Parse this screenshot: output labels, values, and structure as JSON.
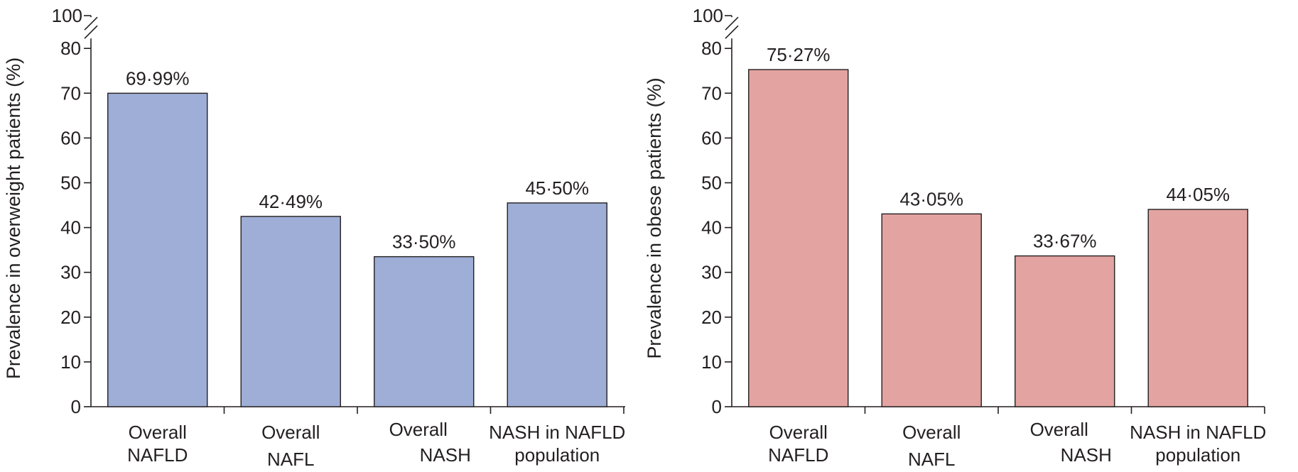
{
  "chart_data": [
    {
      "type": "bar",
      "ylabel": "Prevalence in overweight patients (%)",
      "xlabel": "",
      "categories": [
        [
          "Overall",
          "NAFLD"
        ],
        [
          "Overall",
          "NAFL"
        ],
        [
          "Overall",
          "NASH"
        ],
        [
          "NASH in NAFLD",
          "population"
        ]
      ],
      "values": [
        69.99,
        42.49,
        33.5,
        45.5
      ],
      "data_labels": [
        "69·99%",
        "42·49%",
        "33·50%",
        "45·50%"
      ],
      "ylim": [
        0,
        80
      ],
      "yticks": [
        "0",
        "10",
        "20",
        "30",
        "40",
        "50",
        "60",
        "70",
        "80"
      ],
      "axis_break_label": "100",
      "bar_color": "#9eaed6",
      "grid": false,
      "legend": "none"
    },
    {
      "type": "bar",
      "ylabel": "Prevalence in obese patients (%)",
      "xlabel": "",
      "categories": [
        [
          "Overall",
          "NAFLD"
        ],
        [
          "Overall",
          "NAFL"
        ],
        [
          "Overall",
          "NASH"
        ],
        [
          "NASH in NAFLD",
          "population"
        ]
      ],
      "values": [
        75.27,
        43.05,
        33.67,
        44.05
      ],
      "data_labels": [
        "75·27%",
        "43·05%",
        "33·67%",
        "44·05%"
      ],
      "ylim": [
        0,
        80
      ],
      "yticks": [
        "0",
        "10",
        "20",
        "30",
        "40",
        "50",
        "60",
        "70",
        "80"
      ],
      "axis_break_label": "100",
      "bar_color": "#e3a3a1",
      "grid": false,
      "legend": "none"
    }
  ]
}
